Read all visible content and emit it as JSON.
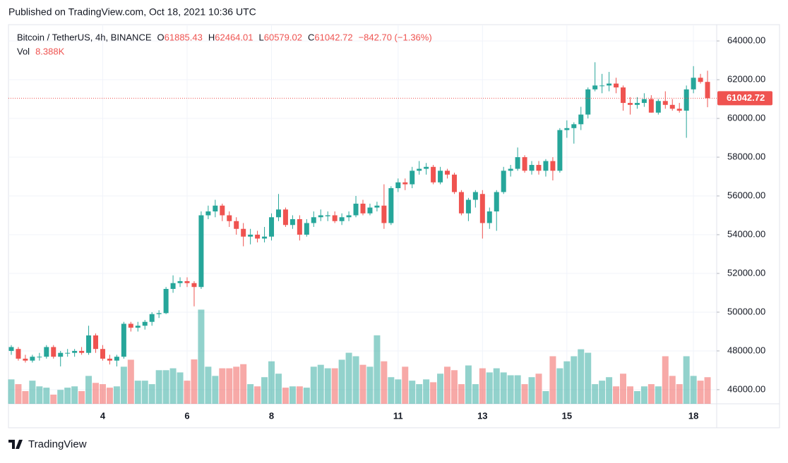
{
  "header": "Published on TradingView.com, Oct 18, 2021 10:36 UTC",
  "footer": "TradingView",
  "chart_data": {
    "type": "candlestick",
    "symbol": "Bitcoin / TetherUS, 4h, BINANCE",
    "ohlc_prefixes": [
      "O",
      "H",
      "L",
      "C"
    ],
    "change_label": "−842.70 (−1.36%)",
    "volume_title": "Vol",
    "volume_label": "8.388K",
    "up_color": "#26a69a",
    "down_color": "#ef5350",
    "grid": true,
    "ylim": [
      45270,
      64840
    ],
    "yticks": [
      {
        "value": 46000,
        "label": "46000.00"
      },
      {
        "value": 48000,
        "label": "48000.00"
      },
      {
        "value": 50000,
        "label": "50000.00"
      },
      {
        "value": 52000,
        "label": "52000.00"
      },
      {
        "value": 54000,
        "label": "54000.00"
      },
      {
        "value": 56000,
        "label": "56000.00"
      },
      {
        "value": 58000,
        "label": "58000.00"
      },
      {
        "value": 60000,
        "label": "60000.00"
      },
      {
        "value": 62000,
        "label": "62000.00"
      },
      {
        "value": 64000,
        "label": "64000.00"
      }
    ],
    "categories": [
      null,
      null,
      null,
      null,
      null,
      null,
      null,
      null,
      null,
      null,
      null,
      null,
      null,
      "4",
      null,
      null,
      null,
      null,
      null,
      null,
      null,
      null,
      null,
      null,
      null,
      "6",
      null,
      null,
      null,
      null,
      null,
      null,
      null,
      null,
      null,
      null,
      null,
      "8",
      null,
      null,
      null,
      null,
      null,
      null,
      null,
      null,
      null,
      null,
      null,
      null,
      null,
      null,
      null,
      null,
      null,
      "11",
      null,
      null,
      null,
      null,
      null,
      null,
      null,
      null,
      null,
      null,
      null,
      "13",
      null,
      null,
      null,
      null,
      null,
      null,
      null,
      null,
      null,
      null,
      null,
      "15",
      null,
      null,
      null,
      null,
      null,
      null,
      null,
      null,
      null,
      null,
      null,
      null,
      null,
      null,
      null,
      null,
      null,
      "18",
      null,
      null
    ],
    "candles": [
      [
        48000,
        48300,
        47800,
        48200
      ],
      [
        48100,
        48200,
        47500,
        47600
      ],
      [
        47600,
        47800,
        47400,
        47500
      ],
      [
        47500,
        47800,
        47400,
        47700
      ],
      [
        47700,
        47900,
        47500,
        47700
      ],
      [
        47700,
        48300,
        47600,
        48200
      ],
      [
        48200,
        48300,
        47600,
        47700
      ],
      [
        47700,
        48000,
        47200,
        47900
      ],
      [
        47900,
        48100,
        47700,
        47900
      ],
      [
        47900,
        48100,
        47700,
        48000
      ],
      [
        48000,
        48200,
        47800,
        47900
      ],
      [
        47900,
        49300,
        47800,
        48800
      ],
      [
        48800,
        48900,
        47900,
        48100
      ],
      [
        48100,
        48300,
        47500,
        47600
      ],
      [
        47600,
        47800,
        47300,
        47500
      ],
      [
        47500,
        47800,
        47200,
        47700
      ],
      [
        47700,
        49500,
        47600,
        49400
      ],
      [
        49400,
        49500,
        49000,
        49200
      ],
      [
        49200,
        49500,
        49000,
        49300
      ],
      [
        49300,
        49600,
        49100,
        49500
      ],
      [
        49500,
        50000,
        49300,
        49900
      ],
      [
        49900,
        50100,
        49700,
        49950
      ],
      [
        49950,
        51300,
        49900,
        51200
      ],
      [
        51200,
        51900,
        51000,
        51500
      ],
      [
        51500,
        51800,
        51300,
        51600
      ],
      [
        51600,
        51800,
        51300,
        51500
      ],
      [
        51500,
        51600,
        50300,
        51300
      ],
      [
        51300,
        55200,
        51200,
        55000
      ],
      [
        55000,
        55500,
        54800,
        55200
      ],
      [
        55200,
        55800,
        54900,
        55500
      ],
      [
        55500,
        55600,
        54700,
        55000
      ],
      [
        55000,
        55200,
        54400,
        54700
      ],
      [
        54700,
        54900,
        54000,
        54300
      ],
      [
        54300,
        54600,
        53400,
        53900
      ],
      [
        53900,
        54300,
        53500,
        54000
      ],
      [
        54000,
        54200,
        53600,
        53800
      ],
      [
        53800,
        54400,
        53600,
        53900
      ],
      [
        53900,
        55100,
        53700,
        54900
      ],
      [
        54900,
        56100,
        54700,
        55300
      ],
      [
        55300,
        55400,
        54400,
        54500
      ],
      [
        54500,
        55000,
        54300,
        54800
      ],
      [
        54800,
        55000,
        53700,
        54000
      ],
      [
        54000,
        54800,
        53900,
        54600
      ],
      [
        54600,
        55200,
        54400,
        54900
      ],
      [
        54900,
        55300,
        54700,
        55000
      ],
      [
        54950,
        55200,
        54700,
        55000
      ],
      [
        55000,
        55200,
        54600,
        54700
      ],
      [
        54700,
        55100,
        54500,
        54900
      ],
      [
        54900,
        55200,
        54700,
        55000
      ],
      [
        55000,
        56000,
        54900,
        55600
      ],
      [
        55600,
        55800,
        55000,
        55100
      ],
      [
        55100,
        55600,
        55000,
        55400
      ],
      [
        55400,
        55700,
        55200,
        55500
      ],
      [
        55500,
        56600,
        54300,
        54600
      ],
      [
        54600,
        56500,
        54500,
        56400
      ],
      [
        56400,
        56900,
        56200,
        56700
      ],
      [
        56700,
        56900,
        56300,
        56600
      ],
      [
        56600,
        57500,
        56400,
        57300
      ],
      [
        57300,
        57800,
        57100,
        57400
      ],
      [
        57400,
        57700,
        57100,
        57500
      ],
      [
        57500,
        57600,
        56600,
        56700
      ],
      [
        56700,
        57500,
        56600,
        57300
      ],
      [
        57300,
        57400,
        56900,
        57100
      ],
      [
        57100,
        57200,
        56100,
        56200
      ],
      [
        56200,
        56300,
        55000,
        55100
      ],
      [
        55100,
        55900,
        54700,
        55800
      ],
      [
        55800,
        56300,
        55400,
        56200
      ],
      [
        56100,
        56300,
        53800,
        54600
      ],
      [
        54600,
        55400,
        54300,
        55200
      ],
      [
        55200,
        56300,
        54200,
        56200
      ],
      [
        56200,
        57500,
        56100,
        57300
      ],
      [
        57300,
        57600,
        57000,
        57400
      ],
      [
        57400,
        58500,
        57300,
        58000
      ],
      [
        58000,
        58100,
        57200,
        57300
      ],
      [
        57300,
        57800,
        57100,
        57600
      ],
      [
        57600,
        57800,
        57100,
        57300
      ],
      [
        57300,
        57900,
        57000,
        57800
      ],
      [
        57800,
        58000,
        56800,
        57300
      ],
      [
        57300,
        59500,
        57200,
        59400
      ],
      [
        59400,
        59900,
        59000,
        59500
      ],
      [
        59500,
        59800,
        58700,
        59700
      ],
      [
        59700,
        60600,
        59400,
        60200
      ],
      [
        60200,
        61600,
        60000,
        61500
      ],
      [
        61500,
        62900,
        61400,
        61700
      ],
      [
        61700,
        62300,
        61300,
        61700
      ],
      [
        61700,
        62400,
        61400,
        61800
      ],
      [
        61800,
        62100,
        61300,
        61600
      ],
      [
        61600,
        61700,
        60400,
        60800
      ],
      [
        60800,
        61100,
        60200,
        60700
      ],
      [
        60700,
        61100,
        60500,
        60800
      ],
      [
        60800,
        61300,
        60600,
        61000
      ],
      [
        61000,
        61200,
        60300,
        60300
      ],
      [
        60300,
        61000,
        60200,
        60900
      ],
      [
        60900,
        61400,
        60500,
        60700
      ],
      [
        60700,
        61000,
        60400,
        60500
      ],
      [
        60500,
        60800,
        60300,
        60400
      ],
      [
        60400,
        61700,
        59000,
        61500
      ],
      [
        61500,
        62700,
        61300,
        62100
      ],
      [
        62100,
        62300,
        61800,
        61885.43
      ],
      [
        61885.43,
        62464.01,
        60579.02,
        61042.72
      ]
    ],
    "volumes": [
      7700,
      6200,
      4000,
      7300,
      5500,
      5100,
      2900,
      4400,
      5100,
      5500,
      4000,
      8800,
      6600,
      6200,
      5100,
      5500,
      11700,
      13900,
      7300,
      7300,
      6200,
      10600,
      10600,
      11200,
      9900,
      7300,
      14000,
      29700,
      11700,
      8800,
      11200,
      11200,
      11700,
      12500,
      6200,
      5500,
      8400,
      13400,
      9500,
      5100,
      5500,
      5500,
      5100,
      11700,
      12300,
      11200,
      11200,
      13900,
      16100,
      15000,
      12300,
      11700,
      21600,
      13400,
      8400,
      7700,
      11700,
      7300,
      6200,
      7700,
      6800,
      9500,
      11700,
      10600,
      6200,
      12100,
      6200,
      11200,
      9900,
      11200,
      9900,
      9000,
      9000,
      6200,
      8400,
      9500,
      4000,
      15000,
      11200,
      13400,
      15000,
      17200,
      16100,
      6200,
      7300,
      8400,
      5500,
      9500,
      5500,
      4000,
      5500,
      6200,
      5500,
      15000,
      8800,
      6200,
      15000,
      8800,
      7300,
      8388
    ]
  }
}
